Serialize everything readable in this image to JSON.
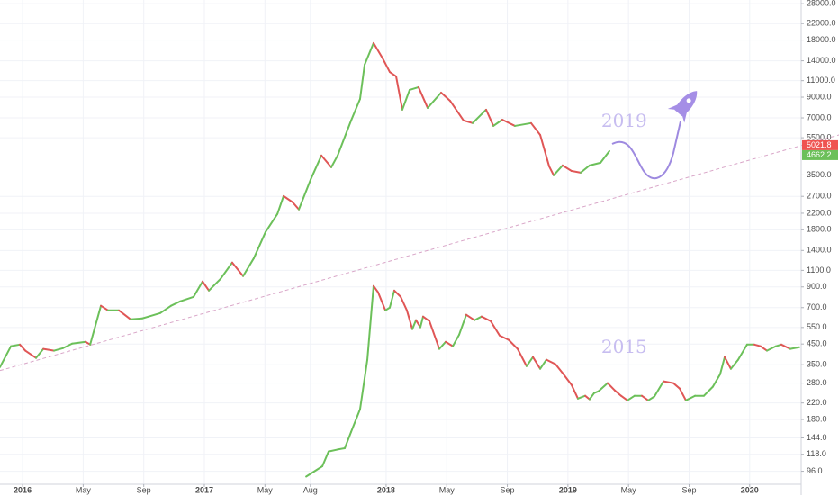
{
  "chart_data": {
    "type": "line",
    "log_y": true,
    "grid": true,
    "up_color": "#6cc05a",
    "down_color": "#e05656",
    "xlim": [
      -1.49,
      51.4
    ],
    "ylim": [
      82,
      29300
    ],
    "xticks": [
      {
        "value": 0,
        "label": "2016"
      },
      {
        "value": 4,
        "label": "May"
      },
      {
        "value": 8,
        "label": "Sep"
      },
      {
        "value": 12,
        "label": "2017"
      },
      {
        "value": 16,
        "label": "May"
      },
      {
        "value": 19,
        "label": "Aug"
      },
      {
        "value": 24,
        "label": "2018"
      },
      {
        "value": 28,
        "label": "May"
      },
      {
        "value": 32,
        "label": "Sep"
      },
      {
        "value": 36,
        "label": "2019"
      },
      {
        "value": 40,
        "label": "May"
      },
      {
        "value": 44,
        "label": "Sep"
      },
      {
        "value": 48,
        "label": "2020"
      }
    ],
    "yticks": [
      {
        "value": 96,
        "label": "96.0"
      },
      {
        "value": 118,
        "label": "118.0"
      },
      {
        "value": 144,
        "label": "144.0"
      },
      {
        "value": 180,
        "label": "180.0"
      },
      {
        "value": 220,
        "label": "220.0"
      },
      {
        "value": 280,
        "label": "280.0"
      },
      {
        "value": 350,
        "label": "350.0"
      },
      {
        "value": 450,
        "label": "450.0"
      },
      {
        "value": 550,
        "label": "550.0"
      },
      {
        "value": 700,
        "label": "700.0"
      },
      {
        "value": 900,
        "label": "900.0"
      },
      {
        "value": 1100,
        "label": "1100.0"
      },
      {
        "value": 1400,
        "label": "1400.0"
      },
      {
        "value": 1800,
        "label": "1800.0"
      },
      {
        "value": 2200,
        "label": "2200.0"
      },
      {
        "value": 2700,
        "label": "2700.0"
      },
      {
        "value": 3500,
        "label": "3500.0"
      },
      {
        "value": 5500,
        "label": "5500.0"
      },
      {
        "value": 7000,
        "label": "7000.0"
      },
      {
        "value": 9000,
        "label": "9000.0"
      },
      {
        "value": 11000,
        "label": "11000.0"
      },
      {
        "value": 14000,
        "label": "14000.0"
      },
      {
        "value": 18000,
        "label": "18000.0"
      },
      {
        "value": 22000,
        "label": "22000.0"
      },
      {
        "value": 28000,
        "label": "28000.0"
      }
    ],
    "series": [
      {
        "x": [
          -1.49,
          -0.77,
          -0.18,
          0.18,
          0.89,
          1.37,
          2.08,
          2.67,
          3.27,
          4.16,
          4.46,
          5.17,
          5.64,
          6.36,
          7.13,
          7.9,
          8.32,
          9.09,
          9.8,
          10.4,
          11.29,
          11.88,
          12.3,
          13.07,
          13.84,
          14.56,
          15.27,
          16.04,
          16.82,
          17.23,
          17.83,
          18.24,
          19.01,
          19.73,
          20.38,
          20.8,
          21.69,
          22.28,
          22.58,
          23.17,
          23.77,
          24.24,
          24.66,
          25.07,
          25.55,
          26.14,
          26.74,
          27.63,
          28.22,
          29.11,
          29.71,
          30.6,
          31.08,
          31.67,
          32.5,
          33.57,
          34.17,
          34.76,
          35.06,
          35.65,
          36.24,
          36.84,
          37.43,
          38.15,
          38.74
        ],
        "values": [
          340,
          438,
          447,
          415,
          380,
          424,
          415,
          428,
          452,
          462,
          447,
          716,
          677,
          677,
          607,
          614,
          628,
          655,
          716,
          755,
          798,
          961,
          861,
          992,
          1209,
          1026,
          1276,
          1752,
          2179,
          2710,
          2514,
          2304,
          3300,
          4433,
          3843,
          4433,
          6785,
          8810,
          13340,
          17370,
          14420,
          12220,
          11580,
          7736,
          9830,
          10160,
          7900,
          9510,
          8620,
          6785,
          6570,
          7736,
          6350,
          6850,
          6350,
          6570,
          5690,
          3890,
          3486,
          3930,
          3676,
          3600,
          3930,
          4060,
          4680
        ]
      },
      {
        "x": [
          18.72,
          19.79,
          20.2,
          20.8,
          21.27,
          21.69,
          22.28,
          22.76,
          23.17,
          23.47,
          23.95,
          24.24,
          24.54,
          24.96,
          25.37,
          25.73,
          25.97,
          26.26,
          26.44,
          26.86,
          27.51,
          27.93,
          28.4,
          28.82,
          29.29,
          29.83,
          30.3,
          30.9,
          31.49,
          32.09,
          32.68,
          33.27,
          33.69,
          34.17,
          34.58,
          35.18,
          35.65,
          36.24,
          36.66,
          37.14,
          37.43,
          37.73,
          38.03,
          38.62,
          39.1,
          39.51,
          39.93,
          40.4,
          40.88,
          41.3,
          41.71,
          42.31,
          42.96,
          43.38,
          43.79,
          44.39,
          44.98,
          45.57,
          46.05,
          46.35,
          46.76,
          47.24,
          47.83,
          48.31,
          48.72,
          49.14,
          49.73,
          50.09,
          50.68,
          51.28
        ],
        "values": [
          90,
          102,
          122,
          125,
          127,
          155,
          204,
          372,
          910,
          843,
          677,
          700,
          861,
          798,
          677,
          539,
          601,
          551,
          628,
          594,
          424,
          462,
          438,
          504,
          642,
          601,
          628,
          594,
          499,
          473,
          424,
          344,
          384,
          333,
          372,
          352,
          316,
          274,
          232,
          240,
          230,
          248,
          254,
          280,
          256,
          240,
          227,
          240,
          240,
          227,
          238,
          286,
          280,
          262,
          227,
          240,
          240,
          268,
          312,
          384,
          333,
          372,
          447,
          447,
          438,
          415,
          438,
          447,
          424,
          433
        ]
      }
    ],
    "trendline": {
      "x": [
        -1.49,
        53.9
      ],
      "values": [
        326,
        5690
      ],
      "color": "#d9a6c8"
    },
    "price_labels": {
      "values": [
        5021.8,
        4662.2
      ],
      "colors": [
        "#ef5350",
        "#6cc05a"
      ]
    },
    "annotations": [
      {
        "text": "2019",
        "x": 38.2,
        "y": 6650
      },
      {
        "text": "2015",
        "x": 38.2,
        "y": 430
      }
    ]
  }
}
